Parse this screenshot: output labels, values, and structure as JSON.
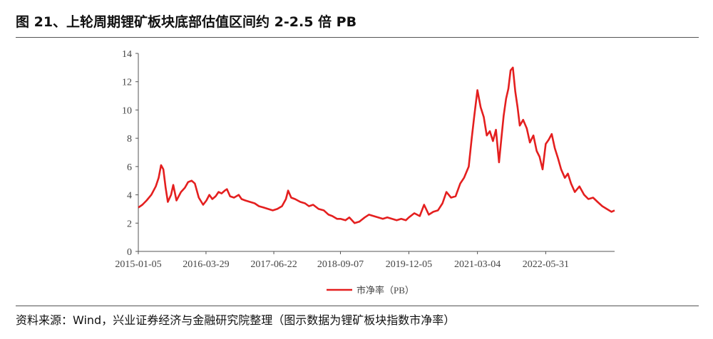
{
  "header": {
    "title": "图 21、上轮周期锂矿板块底部估值区间约 2-2.5 倍 PB"
  },
  "footer": {
    "source": "资料来源：Wind，兴业证券经济与金融研究院整理（图示数据为锂矿板块指数市净率）"
  },
  "colors": {
    "line": "#e41f1f",
    "axis": "#555555"
  },
  "chart_data": {
    "type": "line",
    "title": "",
    "xlabel": "",
    "ylabel": "",
    "ylim": [
      0,
      14
    ],
    "yticks": [
      0,
      2,
      4,
      6,
      8,
      10,
      12,
      14
    ],
    "xlim": [
      "2015-01-05",
      "2023-08-31"
    ],
    "xticks": [
      "2015-01-05",
      "2016-03-29",
      "2017-06-22",
      "2018-09-07",
      "2019-12-05",
      "2021-03-04",
      "2022-05-31"
    ],
    "grid": false,
    "legend": "bottom-center",
    "series": [
      {
        "name": "市净率（PB）",
        "x": [
          "2015-01-05",
          "2015-02-01",
          "2015-03-01",
          "2015-04-01",
          "2015-05-01",
          "2015-05-20",
          "2015-06-05",
          "2015-06-20",
          "2015-07-05",
          "2015-07-20",
          "2015-08-10",
          "2015-08-25",
          "2015-09-15",
          "2015-10-15",
          "2015-11-10",
          "2015-12-01",
          "2015-12-25",
          "2016-01-15",
          "2016-02-10",
          "2016-03-10",
          "2016-04-01",
          "2016-04-20",
          "2016-05-10",
          "2016-06-01",
          "2016-06-20",
          "2016-07-10",
          "2016-08-01",
          "2016-08-15",
          "2016-09-05",
          "2016-10-01",
          "2016-11-01",
          "2016-11-20",
          "2016-12-15",
          "2017-01-15",
          "2017-02-15",
          "2017-03-15",
          "2017-04-15",
          "2017-05-15",
          "2017-06-15",
          "2017-07-15",
          "2017-08-15",
          "2017-09-10",
          "2017-09-25",
          "2017-10-15",
          "2017-11-10",
          "2017-12-15",
          "2018-01-15",
          "2018-02-10",
          "2018-03-10",
          "2018-04-15",
          "2018-05-20",
          "2018-06-20",
          "2018-07-15",
          "2018-08-15",
          "2018-09-07",
          "2018-10-10",
          "2018-11-05",
          "2018-12-10",
          "2019-01-10",
          "2019-02-15",
          "2019-03-15",
          "2019-04-15",
          "2019-05-15",
          "2019-06-15",
          "2019-07-15",
          "2019-08-15",
          "2019-09-15",
          "2019-10-15",
          "2019-11-15",
          "2019-12-05",
          "2020-01-10",
          "2020-02-15",
          "2020-03-15",
          "2020-04-15",
          "2020-05-15",
          "2020-06-15",
          "2020-07-15",
          "2020-08-10",
          "2020-09-10",
          "2020-10-10",
          "2020-11-10",
          "2020-12-05",
          "2021-01-05",
          "2021-01-25",
          "2021-02-10",
          "2021-03-04",
          "2021-03-25",
          "2021-04-15",
          "2021-05-05",
          "2021-05-25",
          "2021-06-15",
          "2021-07-05",
          "2021-07-25",
          "2021-08-10",
          "2021-08-25",
          "2021-09-10",
          "2021-09-25",
          "2021-10-10",
          "2021-10-25",
          "2021-11-10",
          "2021-11-25",
          "2021-12-10",
          "2022-01-01",
          "2022-01-25",
          "2022-02-15",
          "2022-03-10",
          "2022-04-01",
          "2022-04-20",
          "2022-05-10",
          "2022-05-31",
          "2022-06-20",
          "2022-07-10",
          "2022-07-30",
          "2022-08-20",
          "2022-09-10",
          "2022-10-05",
          "2022-10-25",
          "2022-11-15",
          "2022-12-10",
          "2023-01-10",
          "2023-02-10",
          "2023-03-10",
          "2023-04-10",
          "2023-05-10",
          "2023-06-10",
          "2023-07-10",
          "2023-08-10",
          "2023-08-31"
        ],
        "values": [
          3.1,
          3.3,
          3.6,
          4.0,
          4.6,
          5.2,
          6.1,
          5.8,
          4.5,
          3.5,
          4.0,
          4.7,
          3.6,
          4.2,
          4.5,
          4.9,
          5.0,
          4.8,
          3.8,
          3.3,
          3.6,
          4.0,
          3.7,
          3.9,
          4.2,
          4.1,
          4.3,
          4.4,
          3.9,
          3.8,
          4.0,
          3.7,
          3.6,
          3.5,
          3.4,
          3.2,
          3.1,
          3.0,
          2.9,
          3.0,
          3.2,
          3.7,
          4.3,
          3.8,
          3.7,
          3.5,
          3.4,
          3.2,
          3.3,
          3.0,
          2.9,
          2.6,
          2.5,
          2.3,
          2.3,
          2.2,
          2.4,
          2.0,
          2.1,
          2.4,
          2.6,
          2.5,
          2.4,
          2.3,
          2.4,
          2.3,
          2.2,
          2.3,
          2.2,
          2.4,
          2.7,
          2.5,
          3.3,
          2.6,
          2.8,
          2.9,
          3.4,
          4.2,
          3.8,
          3.9,
          4.8,
          5.2,
          6.0,
          8.0,
          9.5,
          11.4,
          10.2,
          9.5,
          8.2,
          8.5,
          7.8,
          8.6,
          6.3,
          8.0,
          9.6,
          10.8,
          11.5,
          12.8,
          13.0,
          11.3,
          10.2,
          8.9,
          9.3,
          8.7,
          7.7,
          8.2,
          7.1,
          6.7,
          5.8,
          7.6,
          7.9,
          8.3,
          7.3,
          6.6,
          5.8,
          5.2,
          5.5,
          4.8,
          4.2,
          4.6,
          4.0,
          3.7,
          3.8,
          3.5,
          3.2,
          3.0,
          2.8,
          2.9
        ]
      }
    ]
  }
}
